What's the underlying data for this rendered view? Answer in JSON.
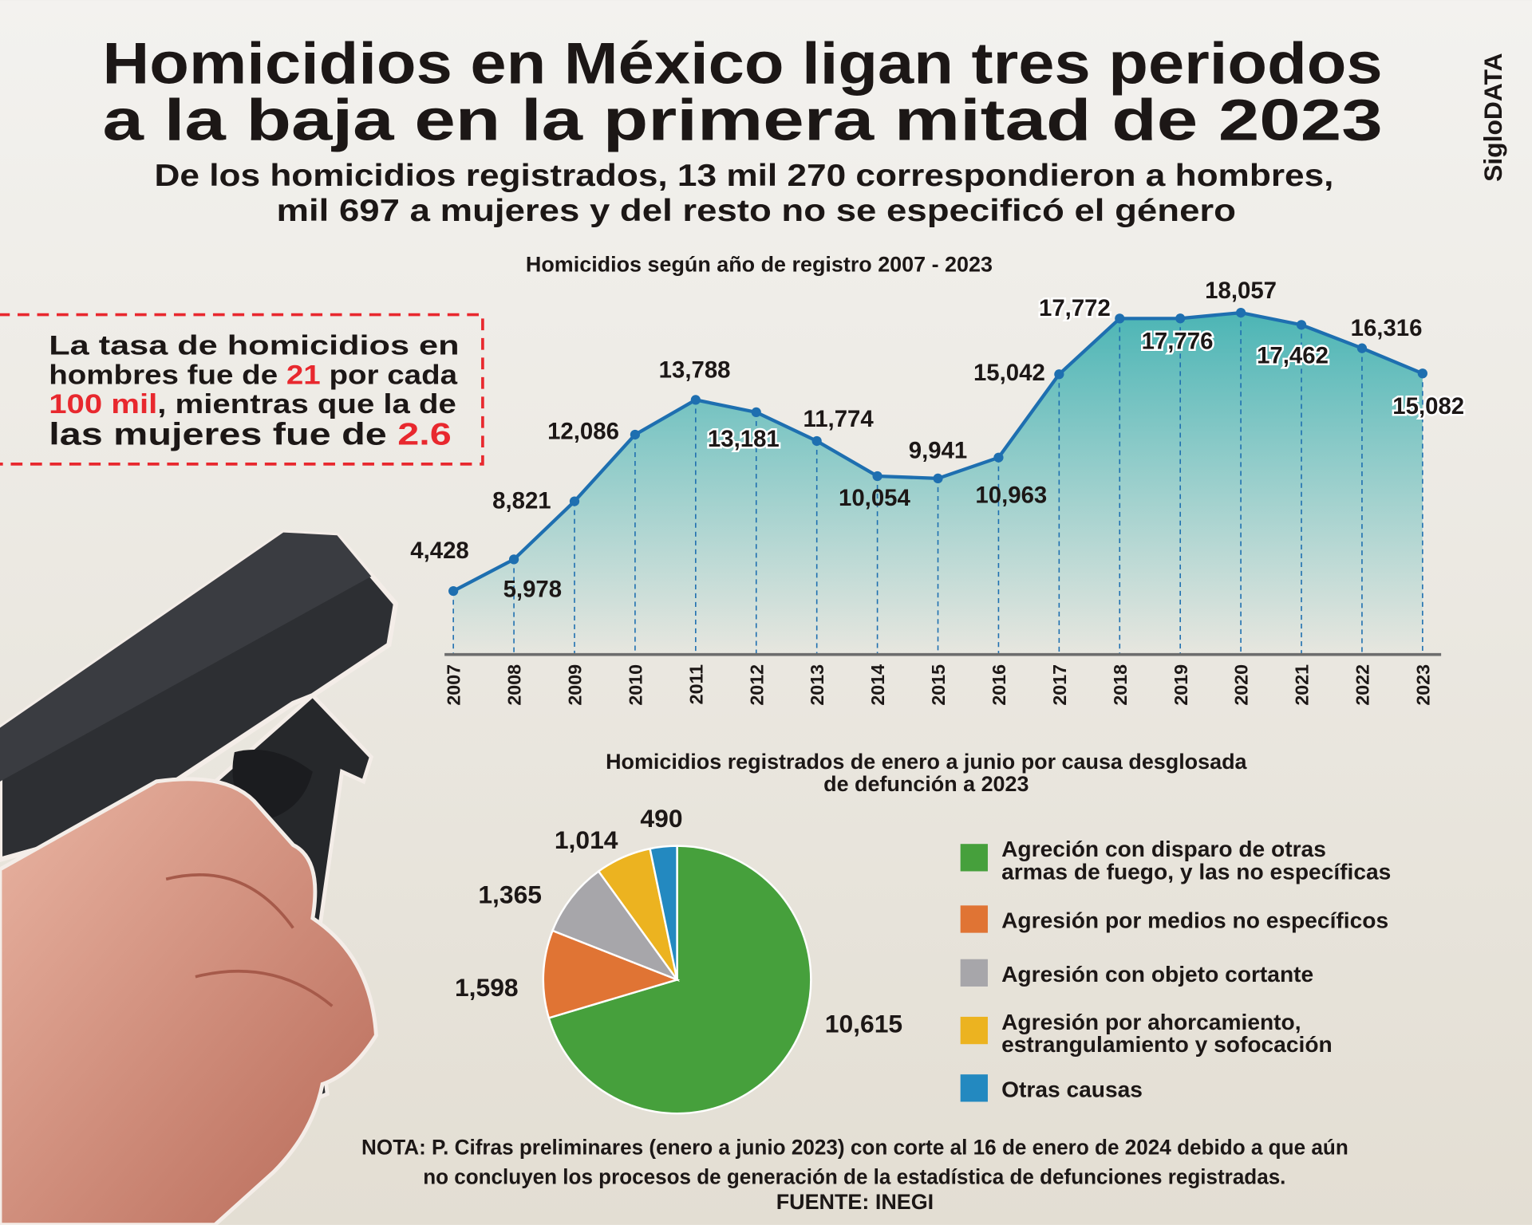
{
  "header": {
    "title_line1": "Homicidios en México ligan tres periodos",
    "title_line2": "a la baja en la primera mitad de 2023",
    "subtitle_line1": "De los homicidios registrados, 13 mil 270 correspondieron a hombres,",
    "subtitle_line2": "mil 697 a mujeres y del resto no se especificó el género",
    "brand": "SigloDATA"
  },
  "callout": {
    "line1": "La tasa de homicidios en",
    "line2_a": "hombres fue de ",
    "line2_b": "21",
    "line2_c": " por cada",
    "line3_a": "100 mil",
    "line3_b": ", mientras que la de",
    "line4_a": "las mujeres fue de ",
    "line4_b": "2.6",
    "accent_color": "#e8282e"
  },
  "chart_data": [
    {
      "type": "area",
      "title": "Homicidios según año de registro 2007 - 2023",
      "categories": [
        "2007",
        "2008",
        "2009",
        "2010",
        "2011",
        "2012",
        "2013",
        "2014",
        "2015",
        "2016",
        "2017",
        "2018",
        "2019",
        "2020",
        "2021",
        "2022",
        "2023"
      ],
      "values": [
        4428,
        5978,
        8821,
        12086,
        13788,
        13181,
        11774,
        10054,
        9941,
        10963,
        15042,
        17772,
        17776,
        18057,
        17462,
        16316,
        15082
      ],
      "labels": [
        "4,428",
        "5,978",
        "8,821",
        "12,086",
        "13,788",
        "13,181",
        "11,774",
        "10,054",
        "9,941",
        "10,963",
        "15,042",
        "17,772",
        "17,776",
        "18,057",
        "17,462",
        "16,316",
        "15,082"
      ],
      "line_color": "#1e6fb0",
      "fill_color": "#4cb5b5",
      "grid": false
    },
    {
      "type": "pie",
      "title_line1": "Homicidios registrados de enero a junio por causa desglosada",
      "title_line2": "de defunción a 2023",
      "legend_position": "right",
      "slices": [
        {
          "label_line1": "Agreción con disparo de otras",
          "label_line2": "armas de fuego, y las no específicas",
          "value": 10615,
          "value_label": "10,615",
          "color": "#46a03c"
        },
        {
          "label_line1": "Agresión por medios no específicos",
          "label_line2": "",
          "value": 1598,
          "value_label": "1,598",
          "color": "#e07434"
        },
        {
          "label_line1": "Agresión con objeto cortante",
          "label_line2": "",
          "value": 1365,
          "value_label": "1,365",
          "color": "#a7a6aa"
        },
        {
          "label_line1": "Agresión por ahorcamiento,",
          "label_line2": "estrangulamiento y sofocación",
          "value": 1014,
          "value_label": "1,014",
          "color": "#ecb320"
        },
        {
          "label_line1": "Otras causas",
          "label_line2": "",
          "value": 490,
          "value_label": "490",
          "color": "#2389c0"
        }
      ]
    }
  ],
  "footer": {
    "note_line1": "NOTA: P. Cifras preliminares (enero a junio 2023) con corte al 16 de enero de 2024 debido a que aún",
    "note_line2": "no concluyen los procesos de generación de la estadística de defunciones registradas.",
    "source": "FUENTE: INEGI"
  }
}
